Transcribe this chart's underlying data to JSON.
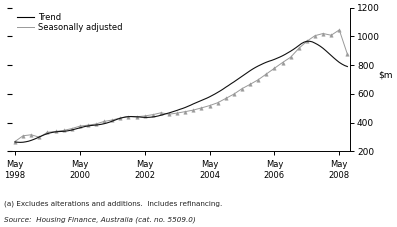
{
  "legend_entries": [
    "Trend",
    "Seasonally adjusted"
  ],
  "legend_colors": [
    "#000000",
    "#999999"
  ],
  "ylim": [
    200,
    1200
  ],
  "yticks": [
    200,
    400,
    600,
    800,
    1000,
    1200
  ],
  "xtick_labels": [
    "May\n1998",
    "May\n2000",
    "May\n2002",
    "May\n2004",
    "May\n2006",
    "May\n2008"
  ],
  "xtick_positions": [
    0,
    24,
    48,
    72,
    96,
    120
  ],
  "xlim": [
    -1,
    124
  ],
  "footnote1": "(a) Excludes alterations and additions.  Includes refinancing.",
  "footnote2": "Source:  Housing Finance, Australia (cat. no. 5509.0)",
  "background_color": "#ffffff",
  "trend_color": "#111111",
  "seas_color": "#999999",
  "trend_linewidth": 0.8,
  "seas_linewidth": 0.7,
  "seas_marker": "^",
  "seas_markersize": 2.5,
  "trend_x": [
    0,
    1,
    2,
    3,
    4,
    5,
    6,
    7,
    8,
    9,
    10,
    11,
    12,
    13,
    14,
    15,
    16,
    17,
    18,
    19,
    20,
    21,
    22,
    23,
    24,
    25,
    26,
    27,
    28,
    29,
    30,
    31,
    32,
    33,
    34,
    35,
    36,
    37,
    38,
    39,
    40,
    41,
    42,
    43,
    44,
    45,
    46,
    47,
    48,
    49,
    50,
    51,
    52,
    53,
    54,
    55,
    56,
    57,
    58,
    59,
    60,
    61,
    62,
    63,
    64,
    65,
    66,
    67,
    68,
    69,
    70,
    71,
    72,
    73,
    74,
    75,
    76,
    77,
    78,
    79,
    80,
    81,
    82,
    83,
    84,
    85,
    86,
    87,
    88,
    89,
    90,
    91,
    92,
    93,
    94,
    95,
    96,
    97,
    98,
    99,
    100,
    101,
    102,
    103,
    104,
    105,
    106,
    107,
    108,
    109,
    110,
    111,
    112,
    113,
    114,
    115,
    116,
    117,
    118,
    119,
    120,
    121,
    122,
    123
  ],
  "trend_y": [
    265,
    263,
    262,
    263,
    266,
    270,
    276,
    283,
    291,
    300,
    308,
    316,
    323,
    328,
    332,
    335,
    337,
    338,
    339,
    341,
    344,
    348,
    353,
    358,
    363,
    368,
    373,
    376,
    379,
    381,
    383,
    385,
    388,
    392,
    397,
    403,
    410,
    417,
    424,
    430,
    435,
    439,
    441,
    442,
    441,
    440,
    439,
    437,
    436,
    436,
    437,
    439,
    442,
    446,
    451,
    456,
    462,
    467,
    473,
    479,
    485,
    492,
    498,
    505,
    513,
    521,
    530,
    538,
    546,
    554,
    562,
    570,
    579,
    589,
    599,
    610,
    621,
    633,
    646,
    658,
    671,
    683,
    696,
    709,
    722,
    735,
    748,
    761,
    773,
    784,
    794,
    803,
    812,
    820,
    827,
    833,
    840,
    848,
    856,
    865,
    875,
    886,
    897,
    909,
    922,
    936,
    950,
    960,
    966,
    966,
    962,
    953,
    943,
    931,
    917,
    901,
    884,
    867,
    850,
    834,
    819,
    807,
    797,
    790
  ],
  "seas_x": [
    0,
    3,
    6,
    9,
    12,
    15,
    18,
    21,
    24,
    27,
    30,
    33,
    36,
    39,
    42,
    45,
    48,
    51,
    54,
    57,
    60,
    63,
    66,
    69,
    72,
    75,
    78,
    81,
    84,
    87,
    90,
    93,
    96,
    99,
    102,
    105,
    108,
    111,
    114,
    117,
    120,
    123
  ],
  "seas_y": [
    268,
    308,
    315,
    298,
    332,
    338,
    345,
    358,
    375,
    382,
    390,
    408,
    418,
    432,
    442,
    440,
    446,
    455,
    468,
    458,
    466,
    476,
    487,
    502,
    518,
    538,
    568,
    598,
    636,
    666,
    698,
    738,
    778,
    818,
    855,
    916,
    966,
    1005,
    1020,
    1008,
    1045,
    876
  ]
}
